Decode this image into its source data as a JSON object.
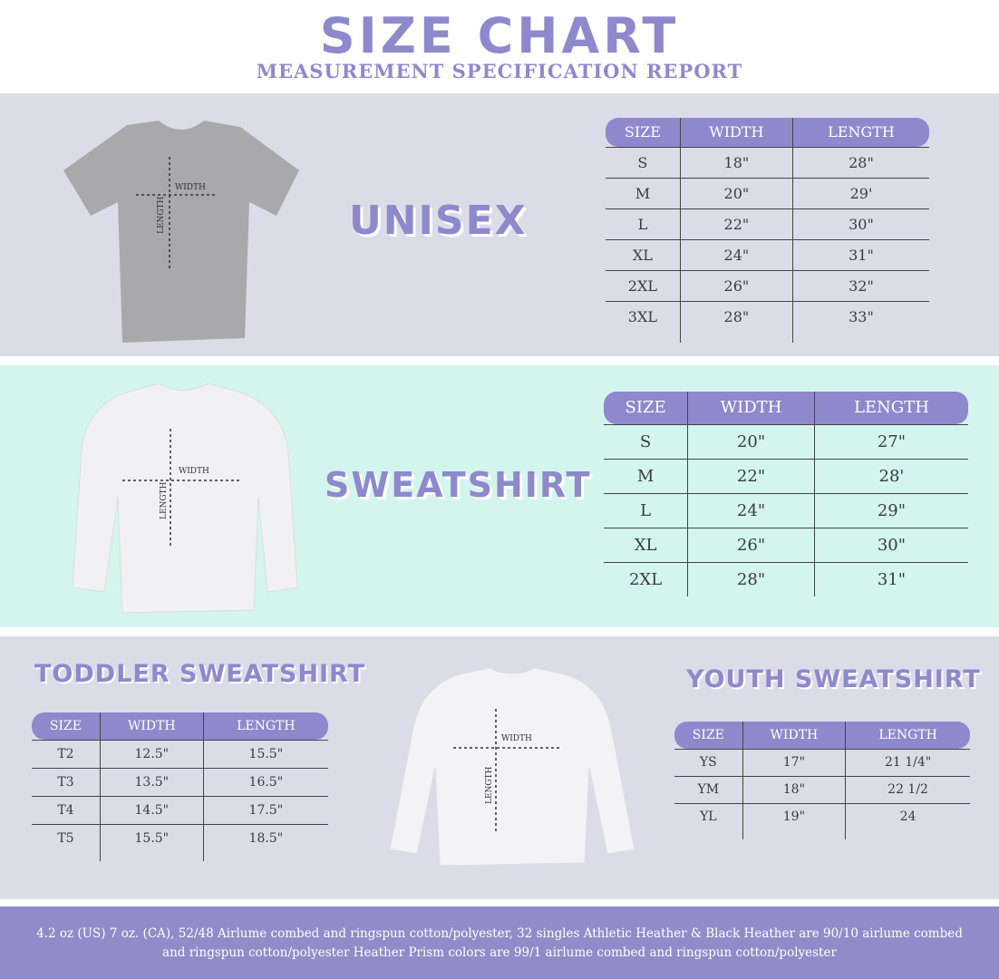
{
  "header": {
    "title": "SIZE CHART",
    "subtitle": "MEASUREMENT SPECIFICATION REPORT"
  },
  "colors": {
    "accent": "#8e89cc",
    "section_gray": "#dcdce8",
    "section_mint": "#d3f5ee",
    "footer": "#8f8cc9"
  },
  "diagram_labels": {
    "width": "WIDTH",
    "length": "LENGTH"
  },
  "unisex": {
    "title": "UNISEX",
    "columns": [
      "SIZE",
      "WIDTH",
      "LENGTH"
    ],
    "rows": [
      [
        "S",
        "18\"",
        "28\""
      ],
      [
        "M",
        "20\"",
        "29'"
      ],
      [
        "L",
        "22\"",
        "30\""
      ],
      [
        "XL",
        "24\"",
        "31\""
      ],
      [
        "2XL",
        "26\"",
        "32\""
      ],
      [
        "3XL",
        "28\"",
        "33\""
      ]
    ]
  },
  "sweatshirt": {
    "title": "SWEATSHIRT",
    "columns": [
      "SIZE",
      "WIDTH",
      "LENGTH"
    ],
    "rows": [
      [
        "S",
        "20\"",
        "27\""
      ],
      [
        "M",
        "22\"",
        "28'"
      ],
      [
        "L",
        "24\"",
        "29\""
      ],
      [
        "XL",
        "26\"",
        "30\""
      ],
      [
        "2XL",
        "28\"",
        "31\""
      ]
    ]
  },
  "toddler": {
    "title": "TODDLER SWEATSHIRT",
    "columns": [
      "SIZE",
      "WIDTH",
      "LENGTH"
    ],
    "rows": [
      [
        "T2",
        "12.5\"",
        "15.5\""
      ],
      [
        "T3",
        "13.5\"",
        "16.5\""
      ],
      [
        "T4",
        "14.5\"",
        "17.5\""
      ],
      [
        "T5",
        "15.5\"",
        "18.5\""
      ]
    ]
  },
  "youth": {
    "title": "YOUTH SWEATSHIRT",
    "columns": [
      "SIZE",
      "WIDTH",
      "LENGTH"
    ],
    "rows": [
      [
        "YS",
        "17\"",
        "21 1/4\""
      ],
      [
        "YM",
        "18\"",
        "22 1/2"
      ],
      [
        "YL",
        "19\"",
        "24"
      ]
    ]
  },
  "footer": {
    "text": "4.2 oz (US) 7 oz. (CA), 52/48 Airlume combed and ringspun cotton/polyester, 32 singles Athletic Heather & Black Heather are 90/10 airlume combed and ringspun cotton/polyester Heather Prism colors are 99/1 airlume combed and ringspun cotton/polyester"
  }
}
